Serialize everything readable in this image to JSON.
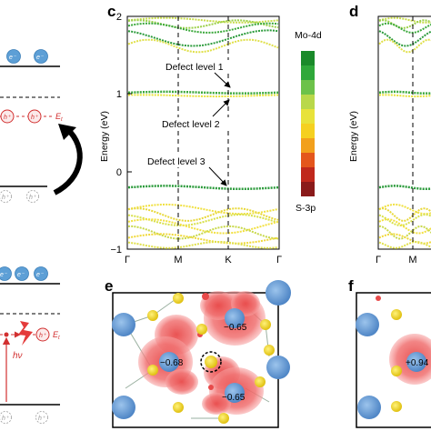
{
  "panels": {
    "c": "c",
    "d": "d",
    "e": "e",
    "f": "f"
  },
  "band_plot": {
    "ylabel": "Energy (eV)",
    "y_ticks": [
      "2",
      "1",
      "0",
      "−1"
    ],
    "x_ticks": [
      "Γ",
      "M",
      "K",
      "Γ"
    ],
    "annotations": [
      "Defect level 1",
      "Defect level 2",
      "Defect level 3"
    ]
  },
  "colorbar": {
    "top_label": "Mo-4d",
    "bottom_label": "S-3p",
    "colors": [
      "#1a8a2a",
      "#2fa83a",
      "#6cc24a",
      "#b9d84a",
      "#e8e23a",
      "#f5d020",
      "#f2a01c",
      "#e4561c",
      "#c0281c",
      "#8a1a1a"
    ]
  },
  "schematic": {
    "electron": "e⁻",
    "hole": "h⁺",
    "level": "E",
    "level_sub": "t",
    "photon": "hν"
  },
  "panel_d": {
    "x_ticks": [
      "Γ",
      "M"
    ],
    "ylabel": "Energy (eV)"
  },
  "charge_maps": {
    "e_values": [
      "−0.65",
      "−0.68",
      "−0.65"
    ],
    "f_values": [
      "+0.94"
    ]
  }
}
